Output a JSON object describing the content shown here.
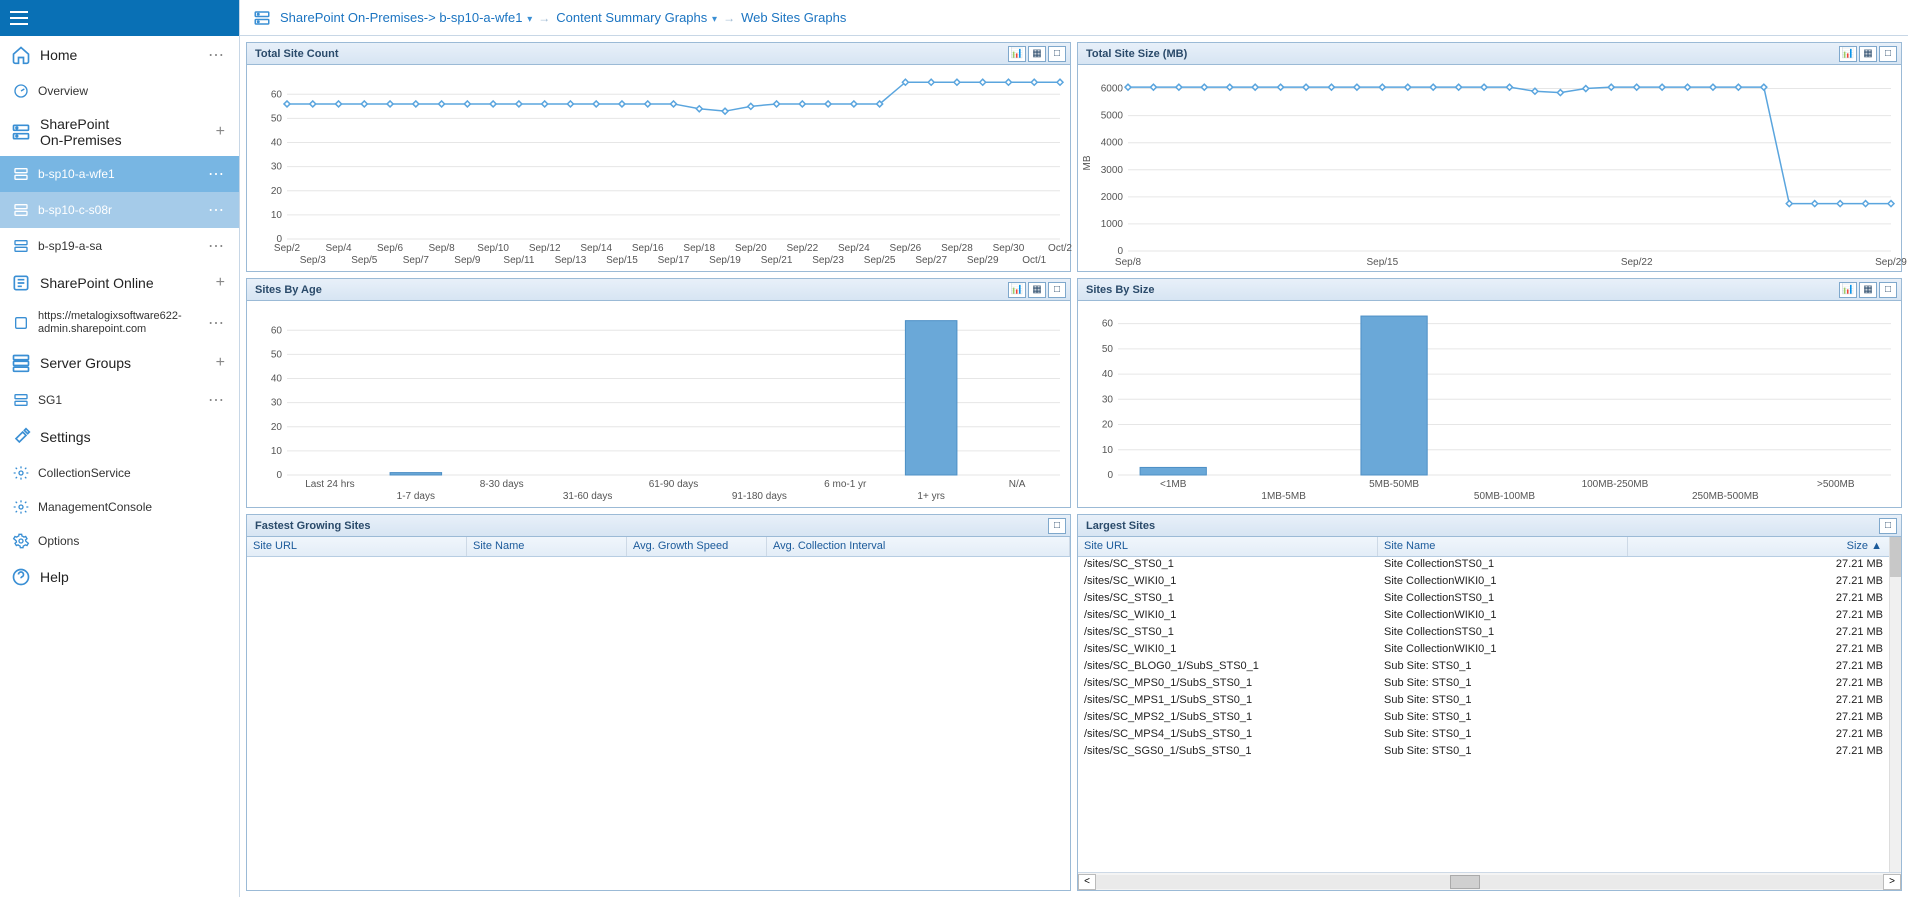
{
  "sidebar": {
    "home": "Home",
    "overview": "Overview",
    "sp_onprem": "SharePoint\nOn-Premises",
    "onprem_items": [
      "b-sp10-a-wfe1",
      "b-sp10-c-s08r",
      "b-sp19-a-sa"
    ],
    "sp_online": "SharePoint Online",
    "online_items": [
      "https://metalogixsoftware622-admin.sharepoint.com"
    ],
    "server_groups": "Server Groups",
    "sg_items": [
      "SG1"
    ],
    "settings": "Settings",
    "settings_items": [
      "CollectionService",
      "ManagementConsole",
      "Options"
    ],
    "help": "Help"
  },
  "breadcrumb": {
    "root": "SharePoint On-Premises",
    "server": "b-sp10-a-wfe1",
    "level2": "Content Summary Graphs",
    "level3": "Web Sites Graphs"
  },
  "panels": {
    "total_site_count": {
      "title": "Total Site Count",
      "type": "line",
      "ylim": [
        0,
        68
      ],
      "ytick_step": 10,
      "xlabels_row1": [
        "Sep/2",
        "Sep/4",
        "Sep/6",
        "Sep/8",
        "Sep/10",
        "Sep/12",
        "Sep/14",
        "Sep/16",
        "Sep/18",
        "Sep/20",
        "Sep/22",
        "Sep/24",
        "Sep/26",
        "Sep/28",
        "Sep/30",
        "Oct/2"
      ],
      "xlabels_row2": [
        "Sep/3",
        "Sep/5",
        "Sep/7",
        "Sep/9",
        "Sep/11",
        "Sep/13",
        "Sep/15",
        "Sep/17",
        "Sep/19",
        "Sep/21",
        "Sep/23",
        "Sep/25",
        "Sep/27",
        "Sep/29",
        "Oct/1"
      ],
      "values": [
        56,
        56,
        56,
        56,
        56,
        56,
        56,
        56,
        56,
        56,
        56,
        56,
        56,
        56,
        56,
        56,
        54,
        53,
        55,
        56,
        56,
        56,
        56,
        56,
        65,
        65,
        65,
        65,
        65,
        65,
        65
      ],
      "line_color": "#5aa5de",
      "marker_color": "#5aa5de",
      "grid_color": "#e6e6e6",
      "background_color": "#ffffff"
    },
    "total_site_size": {
      "title": "Total Site Size (MB)",
      "type": "line",
      "ylabel": "MB",
      "ylim": [
        0,
        6500
      ],
      "ytick_step": 1000,
      "xlabels": [
        "Sep/8",
        "Sep/15",
        "Sep/22",
        "Sep/29"
      ],
      "x_count": 31,
      "values": [
        6050,
        6050,
        6050,
        6050,
        6050,
        6050,
        6050,
        6050,
        6050,
        6050,
        6050,
        6050,
        6050,
        6050,
        6050,
        6050,
        5900,
        5850,
        6000,
        6050,
        6050,
        6050,
        6050,
        6050,
        6050,
        6050,
        1750,
        1750,
        1750,
        1750,
        1750
      ],
      "line_color": "#5aa5de",
      "grid_color": "#e6e6e6",
      "background_color": "#ffffff"
    },
    "sites_by_age": {
      "title": "Sites By Age",
      "type": "bar",
      "categories_row1": [
        "Last 24 hrs",
        "",
        "8-30 days",
        "",
        "61-90 days",
        "",
        "6 mo-1 yr",
        "",
        "N/A"
      ],
      "categories_row2": [
        "",
        "1-7 days",
        "",
        "31-60 days",
        "",
        "91-180 days",
        "",
        "1+ yrs",
        ""
      ],
      "categories": [
        "Last 24 hrs",
        "1-7 days",
        "8-30 days",
        "31-60 days",
        "61-90 days",
        "91-180 days",
        "6 mo-1 yr",
        "1+ yrs",
        "N/A"
      ],
      "values": [
        0,
        1,
        0,
        0,
        0,
        0,
        0,
        64,
        0
      ],
      "ylim": [
        0,
        68
      ],
      "ytick_step": 10,
      "bar_color": "#6aa8d8",
      "bar_border_color": "#4d8fc5",
      "grid_color": "#e6e6e6"
    },
    "sites_by_size": {
      "title": "Sites By Size",
      "type": "bar",
      "categories_row1": [
        "<1MB",
        "",
        "5MB-50MB",
        "",
        "100MB-250MB",
        "",
        ">500MB"
      ],
      "categories_row2": [
        "",
        "1MB-5MB",
        "",
        "50MB-100MB",
        "",
        "250MB-500MB",
        ""
      ],
      "categories": [
        "<1MB",
        "1MB-5MB",
        "5MB-50MB",
        "50MB-100MB",
        "100MB-250MB",
        "250MB-500MB",
        ">500MB"
      ],
      "values": [
        3,
        0,
        63,
        0,
        0,
        0,
        0
      ],
      "ylim": [
        0,
        65
      ],
      "ytick_step": 10,
      "bar_color": "#6aa8d8",
      "bar_border_color": "#4d8fc5",
      "grid_color": "#e6e6e6"
    },
    "fastest_growing": {
      "title": "Fastest Growing Sites",
      "columns": [
        "Site URL",
        "Site Name",
        "Avg. Growth Speed",
        "Avg. Collection Interval"
      ],
      "rows": []
    },
    "largest_sites": {
      "title": "Largest Sites",
      "columns": [
        "Site URL",
        "Site Name",
        "Size"
      ],
      "size_sort_indicator": "▲",
      "rows": [
        [
          "/sites/SC_STS0_1",
          "Site CollectionSTS0_1",
          "27.21 MB"
        ],
        [
          "/sites/SC_WIKI0_1",
          "Site CollectionWIKI0_1",
          "27.21 MB"
        ],
        [
          "/sites/SC_STS0_1",
          "Site CollectionSTS0_1",
          "27.21 MB"
        ],
        [
          "/sites/SC_WIKI0_1",
          "Site CollectionWIKI0_1",
          "27.21 MB"
        ],
        [
          "/sites/SC_STS0_1",
          "Site CollectionSTS0_1",
          "27.21 MB"
        ],
        [
          "/sites/SC_WIKI0_1",
          "Site CollectionWIKI0_1",
          "27.21 MB"
        ],
        [
          "/sites/SC_BLOG0_1/SubS_STS0_1",
          "Sub Site: STS0_1",
          "27.21 MB"
        ],
        [
          "/sites/SC_MPS0_1/SubS_STS0_1",
          "Sub Site: STS0_1",
          "27.21 MB"
        ],
        [
          "/sites/SC_MPS1_1/SubS_STS0_1",
          "Sub Site: STS0_1",
          "27.21 MB"
        ],
        [
          "/sites/SC_MPS2_1/SubS_STS0_1",
          "Sub Site: STS0_1",
          "27.21 MB"
        ],
        [
          "/sites/SC_MPS4_1/SubS_STS0_1",
          "Sub Site: STS0_1",
          "27.21 MB"
        ],
        [
          "/sites/SC_SGS0_1/SubS_STS0_1",
          "Sub Site: STS0_1",
          "27.21 MB"
        ]
      ]
    }
  }
}
